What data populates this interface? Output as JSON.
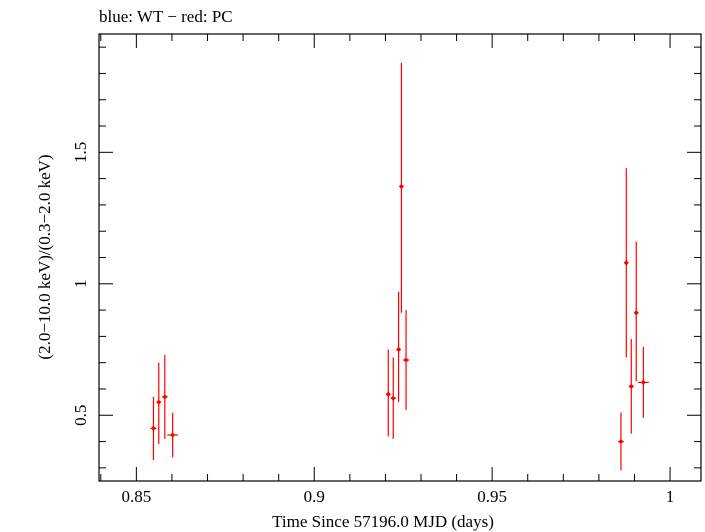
{
  "chart_data": {
    "type": "scatter",
    "title": "blue: WT − red: PC",
    "xlabel": "Time Since 57196.0 MJD (days)",
    "ylabel": "(2.0−10.0 keV)/(0.3−2.0 keV)",
    "xlim": [
      0.8395,
      1.0087
    ],
    "ylim": [
      0.25,
      1.95
    ],
    "x_ticks": [
      {
        "value": 0.85,
        "label": "0.85"
      },
      {
        "value": 0.9,
        "label": "0.9"
      },
      {
        "value": 0.95,
        "label": "0.95"
      },
      {
        "value": 1.0,
        "label": "1"
      }
    ],
    "y_ticks": [
      {
        "value": 0.5,
        "label": "0.5"
      },
      {
        "value": 1.0,
        "label": "1"
      },
      {
        "value": 1.5,
        "label": "1.5"
      }
    ],
    "series": [
      {
        "name": "PC",
        "color": "#ff0000",
        "points": [
          {
            "x": 0.8548,
            "y": 0.45,
            "xerr": 0.0008,
            "ylo": 0.33,
            "yhi": 0.57
          },
          {
            "x": 0.8563,
            "y": 0.55,
            "xerr": 0.0006,
            "ylo": 0.39,
            "yhi": 0.7
          },
          {
            "x": 0.858,
            "y": 0.57,
            "xerr": 0.0008,
            "ylo": 0.41,
            "yhi": 0.73
          },
          {
            "x": 0.8602,
            "y": 0.425,
            "xerr": 0.0015,
            "ylo": 0.34,
            "yhi": 0.51
          },
          {
            "x": 0.9208,
            "y": 0.58,
            "xerr": 0.0006,
            "ylo": 0.42,
            "yhi": 0.75
          },
          {
            "x": 0.9222,
            "y": 0.565,
            "xerr": 0.0007,
            "ylo": 0.41,
            "yhi": 0.72
          },
          {
            "x": 0.9237,
            "y": 0.75,
            "xerr": 0.0006,
            "ylo": 0.55,
            "yhi": 0.97
          },
          {
            "x": 0.9245,
            "y": 1.37,
            "xerr": 0.0003,
            "ylo": 0.89,
            "yhi": 1.84
          },
          {
            "x": 0.9258,
            "y": 0.71,
            "xerr": 0.0009,
            "ylo": 0.52,
            "yhi": 0.9
          },
          {
            "x": 0.9862,
            "y": 0.4,
            "xerr": 0.0008,
            "ylo": 0.29,
            "yhi": 0.51
          },
          {
            "x": 0.9877,
            "y": 1.08,
            "xerr": 0.0003,
            "ylo": 0.72,
            "yhi": 1.44
          },
          {
            "x": 0.9891,
            "y": 0.61,
            "xerr": 0.0007,
            "ylo": 0.43,
            "yhi": 0.79
          },
          {
            "x": 0.9905,
            "y": 0.89,
            "xerr": 0.0005,
            "ylo": 0.63,
            "yhi": 1.16
          },
          {
            "x": 0.9925,
            "y": 0.625,
            "xerr": 0.0015,
            "ylo": 0.49,
            "yhi": 0.76
          }
        ]
      }
    ],
    "grid": false,
    "legend": "none"
  }
}
